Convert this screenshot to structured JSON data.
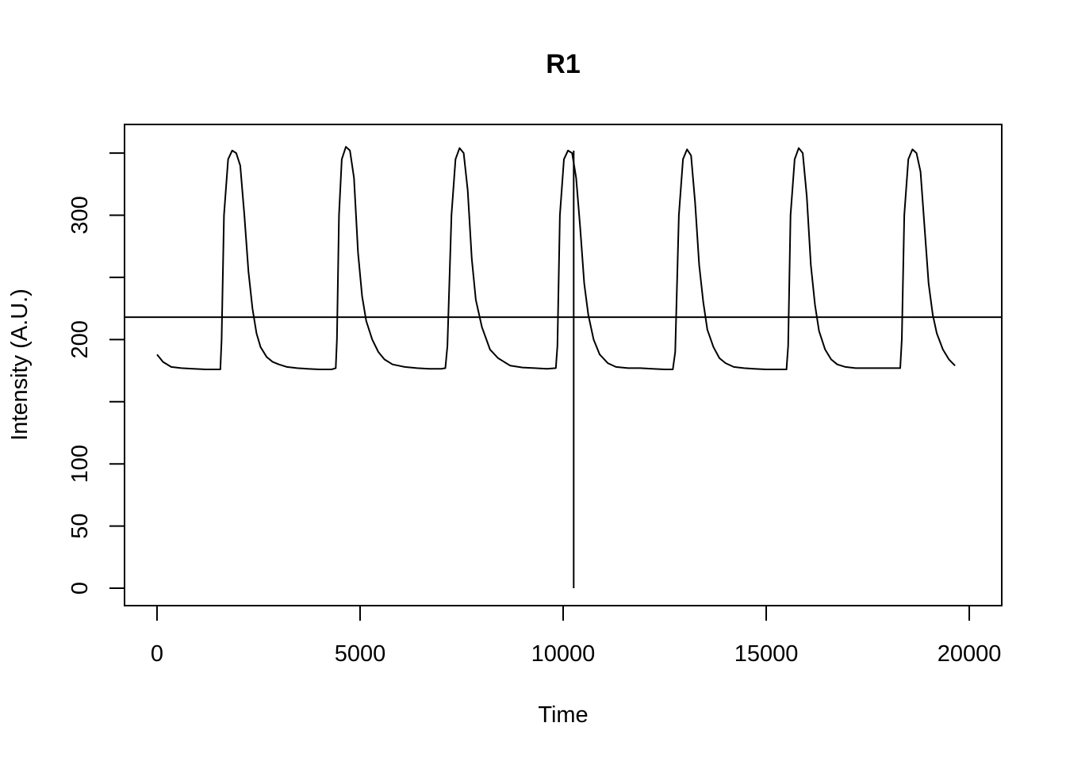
{
  "chart_data": {
    "type": "line",
    "title": "R1",
    "xlabel": "Time",
    "ylabel": "Intensity (A.U.)",
    "xlim": [
      -800,
      20800
    ],
    "ylim": [
      -14,
      373
    ],
    "x_ticks": [
      0,
      5000,
      10000,
      15000,
      20000
    ],
    "x_tick_labels": [
      "0",
      "5000",
      "10000",
      "15000",
      "20000"
    ],
    "y_ticks": [
      0,
      50,
      100,
      150,
      200,
      250,
      300,
      350
    ],
    "y_tick_labels": [
      "0",
      "50",
      "100",
      "",
      "200",
      "",
      "300",
      ""
    ],
    "grid": false,
    "legend": "none",
    "threshold_line": {
      "y": 218
    },
    "spike": {
      "x": 10260,
      "y_min": 0,
      "y_max": 352
    },
    "series": [
      {
        "color": "#000000",
        "x": [
          0,
          150,
          350,
          600,
          900,
          1200,
          1500,
          1560,
          1590,
          1650,
          1750,
          1850,
          1950,
          2050,
          2150,
          2250,
          2350,
          2450,
          2550,
          2700,
          2850,
          3000,
          3200,
          3450,
          3700,
          4000,
          4300,
          4400,
          4430,
          4480,
          4550,
          4650,
          4750,
          4850,
          4950,
          5050,
          5150,
          5300,
          5450,
          5600,
          5800,
          6100,
          6400,
          6700,
          7000,
          7100,
          7150,
          7250,
          7350,
          7450,
          7550,
          7650,
          7750,
          7850,
          8000,
          8200,
          8400,
          8700,
          9000,
          9300,
          9600,
          9820,
          9860,
          9920,
          10020,
          10120,
          10220,
          10320,
          10420,
          10520,
          10620,
          10750,
          10900,
          11100,
          11300,
          11600,
          11900,
          12200,
          12500,
          12700,
          12760,
          12850,
          12950,
          13050,
          13150,
          13250,
          13350,
          13450,
          13550,
          13700,
          13850,
          14000,
          14200,
          14450,
          14700,
          15000,
          15300,
          15500,
          15540,
          15600,
          15700,
          15800,
          15900,
          16000,
          16100,
          16200,
          16300,
          16450,
          16600,
          16750,
          16950,
          17200,
          17500,
          17800,
          18100,
          18300,
          18340,
          18400,
          18500,
          18600,
          18700,
          18800,
          18900,
          19000,
          19100,
          19200,
          19350,
          19500,
          19650
        ],
        "values": [
          188,
          182,
          178,
          177,
          176.5,
          176,
          176,
          176,
          200,
          300,
          345,
          352,
          350,
          340,
          300,
          255,
          225,
          205,
          194,
          186,
          182,
          180,
          178,
          177,
          176.5,
          176,
          176,
          177,
          200,
          300,
          345,
          355,
          352,
          330,
          270,
          235,
          215,
          200,
          190,
          184,
          180,
          178,
          177,
          176.5,
          176.5,
          177,
          195,
          300,
          345,
          354,
          350,
          320,
          265,
          232,
          210,
          192,
          185,
          179,
          177.5,
          177,
          176.5,
          177,
          195,
          300,
          345,
          352,
          350,
          330,
          290,
          245,
          220,
          200,
          188,
          181,
          178,
          177,
          177,
          176.5,
          176,
          176,
          190,
          300,
          345,
          353,
          348,
          310,
          260,
          230,
          208,
          194,
          185,
          181,
          178,
          177,
          176.5,
          176,
          176,
          176,
          195,
          300,
          345,
          354,
          350,
          315,
          260,
          228,
          207,
          192,
          184,
          180,
          178,
          177,
          177,
          177,
          177,
          177,
          200,
          300,
          345,
          353,
          350,
          335,
          290,
          245,
          220,
          205,
          192,
          184,
          179
        ]
      }
    ]
  }
}
